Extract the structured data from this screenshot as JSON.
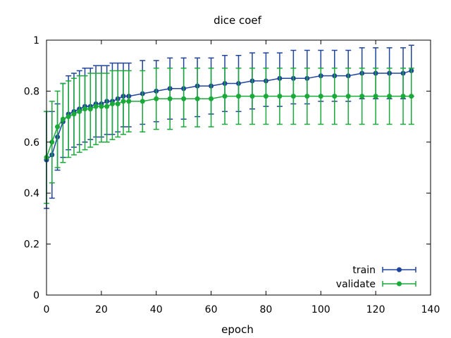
{
  "chart_data": {
    "type": "line",
    "title": "dice coef",
    "xlabel": "epoch",
    "ylabel": "",
    "xlim": [
      0,
      140
    ],
    "ylim": [
      0,
      1
    ],
    "xticks": [
      0,
      20,
      40,
      60,
      80,
      100,
      120,
      140
    ],
    "xtick_labels": [
      "0",
      "20",
      "40",
      "60",
      "80",
      "100",
      "120",
      "140"
    ],
    "yticks": [
      0,
      0.2,
      0.4,
      0.6,
      0.8,
      1
    ],
    "ytick_labels": [
      "0",
      "0.2",
      "0.4",
      "0.6",
      "0.8",
      "1"
    ],
    "grid": false,
    "legend_position": "bottom-right",
    "error_bars": true,
    "series": [
      {
        "name": "train",
        "color": "#1f449c",
        "x": [
          0,
          2,
          4,
          6,
          8,
          10,
          12,
          14,
          16,
          18,
          20,
          22,
          24,
          26,
          28,
          30,
          35,
          40,
          45,
          50,
          55,
          60,
          65,
          70,
          75,
          80,
          85,
          90,
          95,
          100,
          105,
          110,
          115,
          120,
          125,
          130,
          133
        ],
        "y": [
          0.53,
          0.55,
          0.62,
          0.68,
          0.71,
          0.72,
          0.73,
          0.74,
          0.74,
          0.75,
          0.75,
          0.76,
          0.76,
          0.77,
          0.78,
          0.78,
          0.79,
          0.8,
          0.81,
          0.81,
          0.82,
          0.82,
          0.83,
          0.83,
          0.84,
          0.84,
          0.85,
          0.85,
          0.85,
          0.86,
          0.86,
          0.86,
          0.87,
          0.87,
          0.87,
          0.87,
          0.88
        ],
        "err_low": [
          0.34,
          0.38,
          0.49,
          0.54,
          0.57,
          0.58,
          0.59,
          0.6,
          0.61,
          0.62,
          0.62,
          0.63,
          0.63,
          0.64,
          0.66,
          0.66,
          0.67,
          0.68,
          0.69,
          0.69,
          0.7,
          0.71,
          0.72,
          0.72,
          0.73,
          0.74,
          0.74,
          0.75,
          0.75,
          0.76,
          0.76,
          0.76,
          0.77,
          0.77,
          0.77,
          0.77,
          0.78
        ],
        "err_high": [
          0.72,
          0.72,
          0.75,
          0.83,
          0.86,
          0.87,
          0.88,
          0.89,
          0.89,
          0.9,
          0.9,
          0.9,
          0.91,
          0.91,
          0.91,
          0.91,
          0.92,
          0.92,
          0.93,
          0.93,
          0.93,
          0.93,
          0.94,
          0.94,
          0.95,
          0.95,
          0.95,
          0.96,
          0.96,
          0.96,
          0.96,
          0.96,
          0.97,
          0.97,
          0.97,
          0.97,
          0.98
        ]
      },
      {
        "name": "validate",
        "color": "#1aaa3a",
        "x": [
          0,
          2,
          4,
          6,
          8,
          10,
          12,
          14,
          16,
          18,
          20,
          22,
          24,
          26,
          28,
          30,
          35,
          40,
          45,
          50,
          55,
          60,
          65,
          70,
          75,
          80,
          85,
          90,
          95,
          100,
          105,
          110,
          115,
          120,
          125,
          130,
          133
        ],
        "y": [
          0.54,
          0.6,
          0.66,
          0.69,
          0.7,
          0.71,
          0.72,
          0.73,
          0.73,
          0.74,
          0.74,
          0.74,
          0.75,
          0.75,
          0.76,
          0.76,
          0.76,
          0.77,
          0.77,
          0.77,
          0.77,
          0.77,
          0.78,
          0.78,
          0.78,
          0.78,
          0.78,
          0.78,
          0.78,
          0.78,
          0.78,
          0.78,
          0.78,
          0.78,
          0.78,
          0.78,
          0.78
        ],
        "err_low": [
          0.36,
          0.44,
          0.5,
          0.52,
          0.54,
          0.55,
          0.56,
          0.57,
          0.58,
          0.59,
          0.6,
          0.6,
          0.61,
          0.62,
          0.63,
          0.64,
          0.64,
          0.65,
          0.65,
          0.66,
          0.66,
          0.66,
          0.67,
          0.67,
          0.67,
          0.67,
          0.67,
          0.67,
          0.67,
          0.67,
          0.67,
          0.67,
          0.67,
          0.67,
          0.67,
          0.67,
          0.67
        ],
        "err_high": [
          0.72,
          0.76,
          0.8,
          0.83,
          0.84,
          0.85,
          0.86,
          0.86,
          0.87,
          0.87,
          0.87,
          0.87,
          0.88,
          0.88,
          0.88,
          0.88,
          0.88,
          0.89,
          0.89,
          0.89,
          0.89,
          0.89,
          0.89,
          0.89,
          0.89,
          0.89,
          0.89,
          0.89,
          0.89,
          0.89,
          0.89,
          0.89,
          0.89,
          0.89,
          0.89,
          0.89,
          0.89
        ]
      }
    ]
  }
}
